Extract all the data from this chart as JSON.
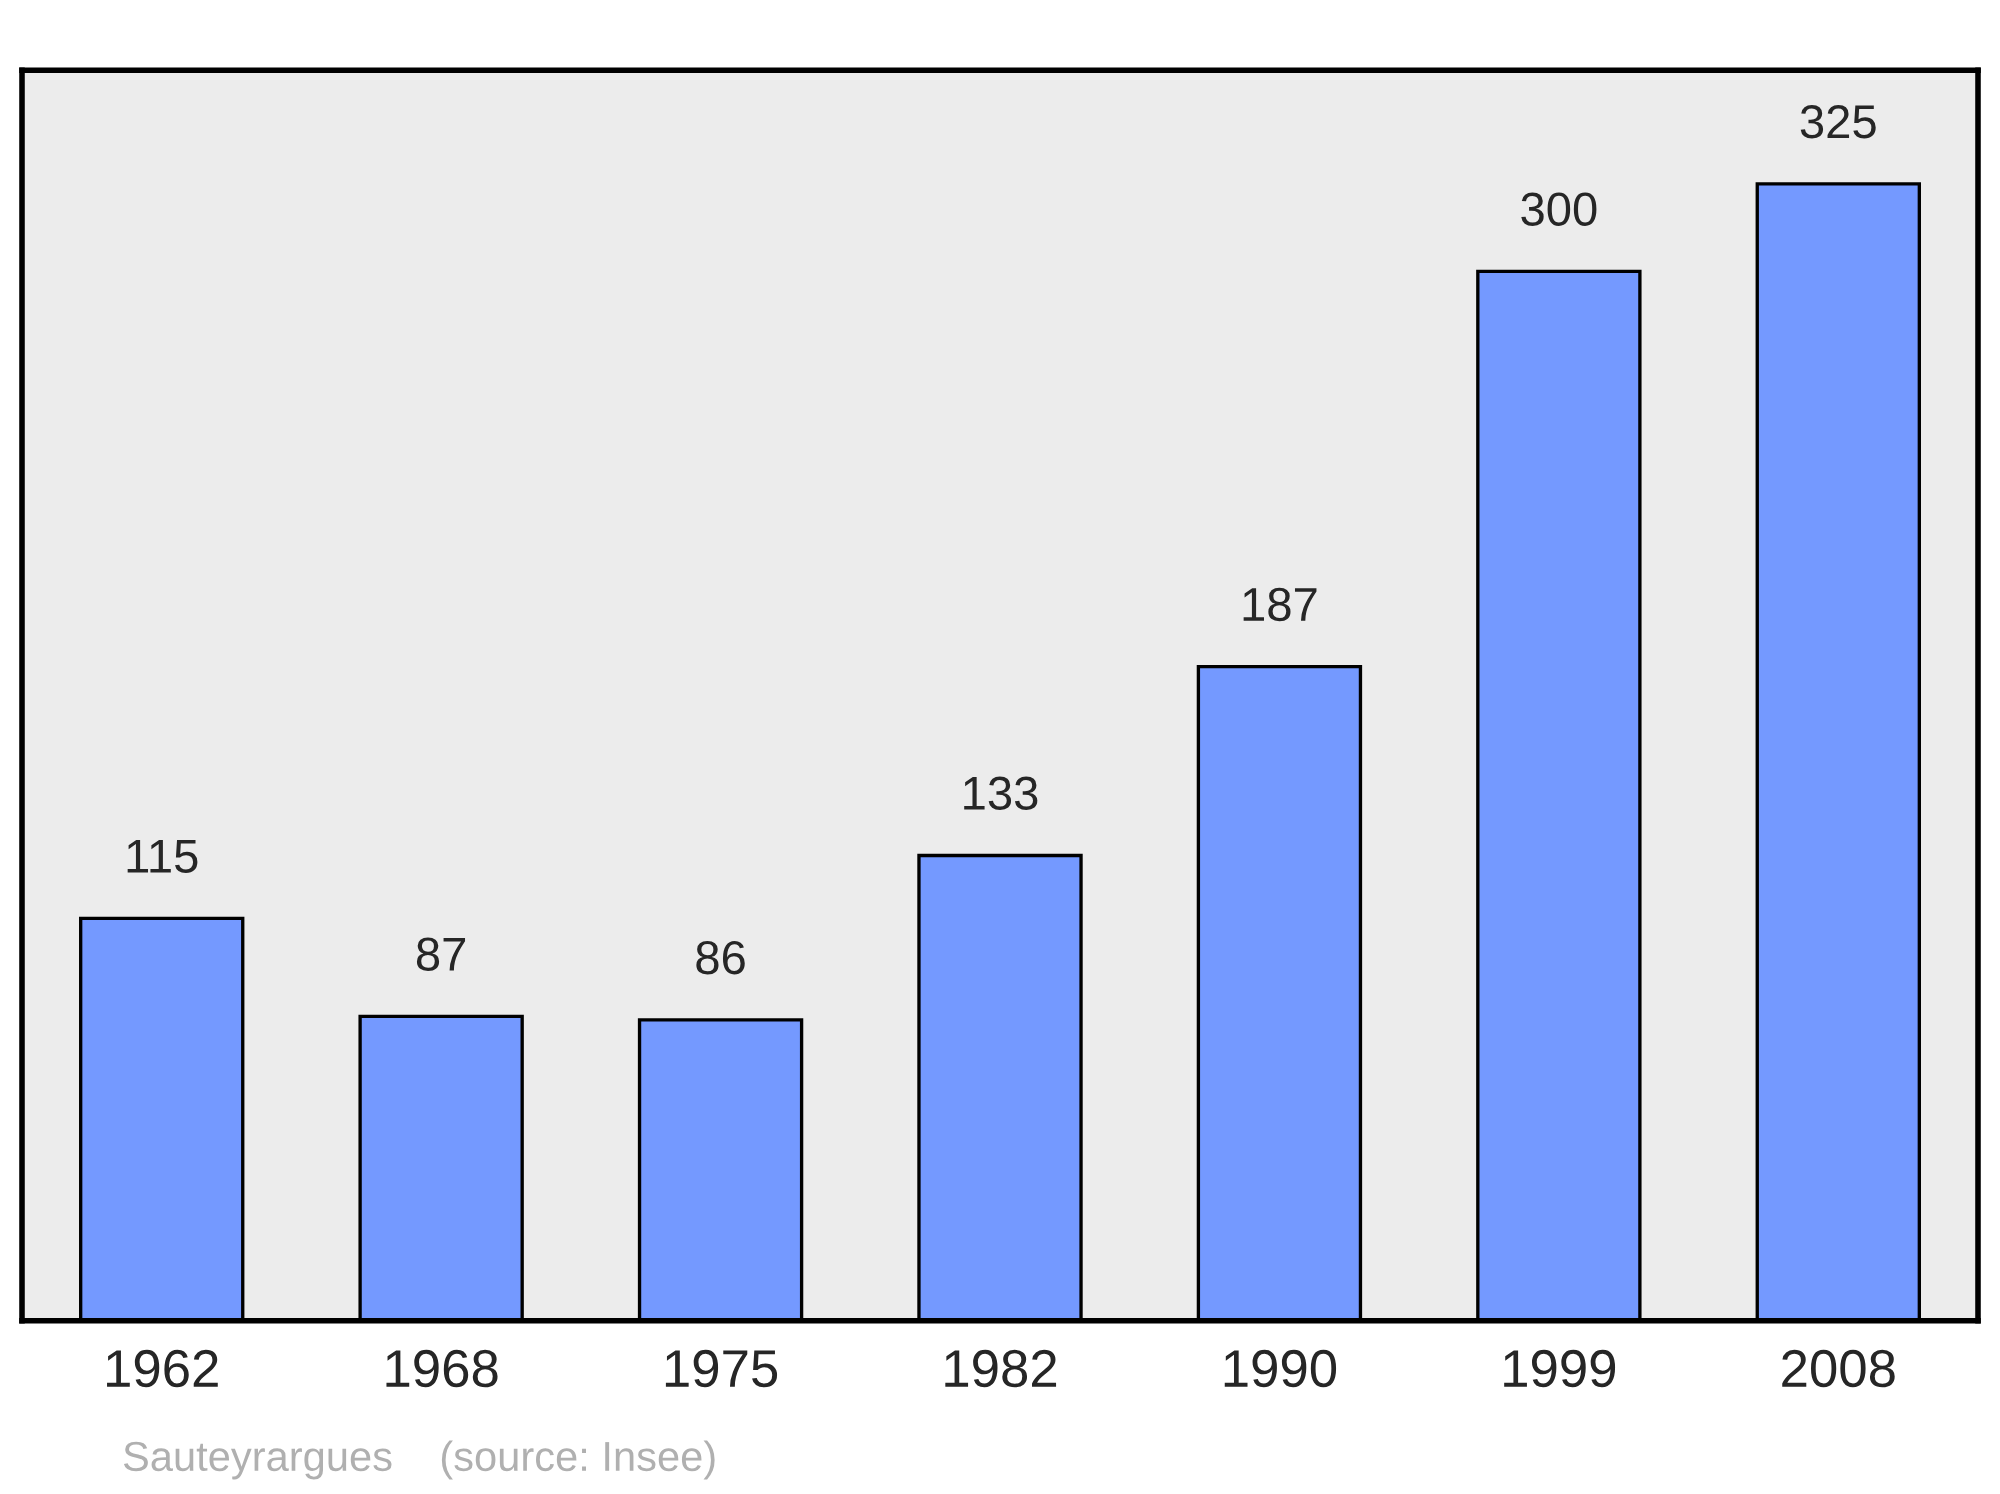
{
  "chart_data": {
    "type": "bar",
    "categories": [
      "1962",
      "1968",
      "1975",
      "1982",
      "1990",
      "1999",
      "2008"
    ],
    "values": [
      115,
      87,
      86,
      133,
      187,
      300,
      325
    ],
    "color": "#7499ff",
    "data_labels": true,
    "grid": false,
    "legend": false,
    "annotations": [
      "Sauteyrargues    (source: Insee)"
    ]
  }
}
